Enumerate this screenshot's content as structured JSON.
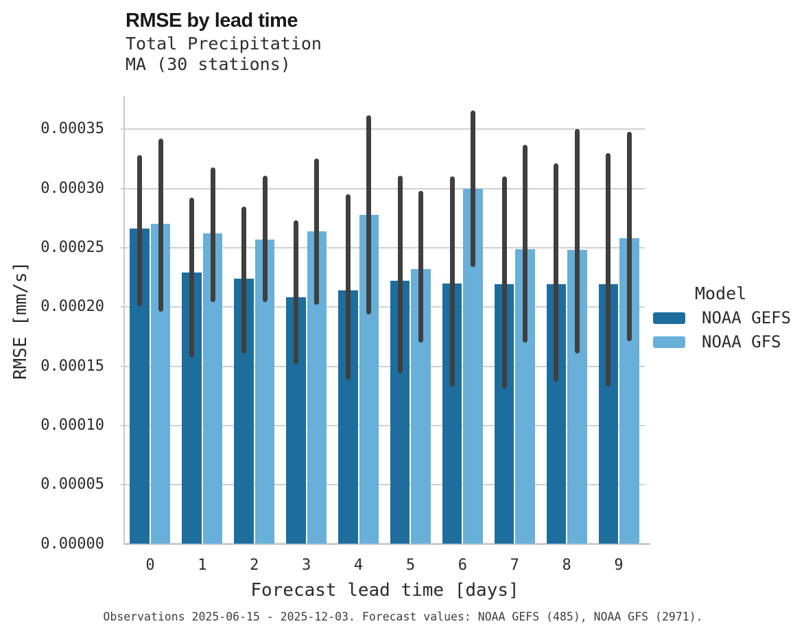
{
  "header": {
    "title": "RMSE by lead time",
    "subtitle_line1": "Total Precipitation",
    "subtitle_line2": "MA (30 stations)"
  },
  "legend": {
    "title": "Model"
  },
  "footer": {
    "note": "Observations 2025-06-15 - 2025-12-03. Forecast values: NOAA GEFS (485), NOAA GFS (2971)."
  },
  "colors": {
    "gefs_bar": "#1d6e9d",
    "gfs_bar": "#68afd9",
    "error_bar": "#3f3f3f",
    "gridline": "#d0d0d0",
    "spine": "#c9c9c9",
    "text": "#2b2b2b",
    "footnote_text": "#3d3d3d"
  },
  "chart_data": {
    "type": "bar",
    "title": "RMSE by lead time",
    "subtitle": [
      "Total Precipitation",
      "MA (30 stations)"
    ],
    "xlabel": "Forecast lead time [days]",
    "ylabel": "RMSE [mm/s]",
    "categories": [
      "0",
      "1",
      "2",
      "3",
      "4",
      "5",
      "6",
      "7",
      "8",
      "9"
    ],
    "ylim": [
      0,
      0.000378
    ],
    "yticks": [
      0.0,
      5e-05,
      0.0001,
      0.00015,
      0.0002,
      0.00025,
      0.0003,
      0.00035
    ],
    "ytick_decimals": 5,
    "grid": "horizontal",
    "legend_position": "right",
    "error_bars": true,
    "series": [
      {
        "name": "NOAA GEFS",
        "color": "#1d6e9d",
        "values": [
          0.000266,
          0.000229,
          0.000224,
          0.000208,
          0.000214,
          0.000222,
          0.00022,
          0.000219,
          0.000219,
          0.000219
        ],
        "err_low": [
          0.000201,
          0.000157,
          0.000161,
          0.000152,
          0.000139,
          0.000144,
          0.000133,
          0.000131,
          0.000137,
          0.000133
        ],
        "err_high": [
          0.000328,
          0.000292,
          0.000285,
          0.000273,
          0.000295,
          0.000311,
          0.00031,
          0.00031,
          0.000321,
          0.00033
        ]
      },
      {
        "name": "NOAA GFS",
        "color": "#68afd9",
        "values": [
          0.00027,
          0.000262,
          0.000257,
          0.000264,
          0.000278,
          0.000232,
          0.0003,
          0.000249,
          0.000248,
          0.000258
        ],
        "err_low": [
          0.000196,
          0.000204,
          0.000204,
          0.000202,
          0.000194,
          0.00017,
          0.000234,
          0.00017,
          0.000161,
          0.000171
        ],
        "err_high": [
          0.000342,
          0.000318,
          0.000311,
          0.000325,
          0.000362,
          0.000298,
          0.000366,
          0.000337,
          0.00035,
          0.000348
        ]
      }
    ]
  }
}
